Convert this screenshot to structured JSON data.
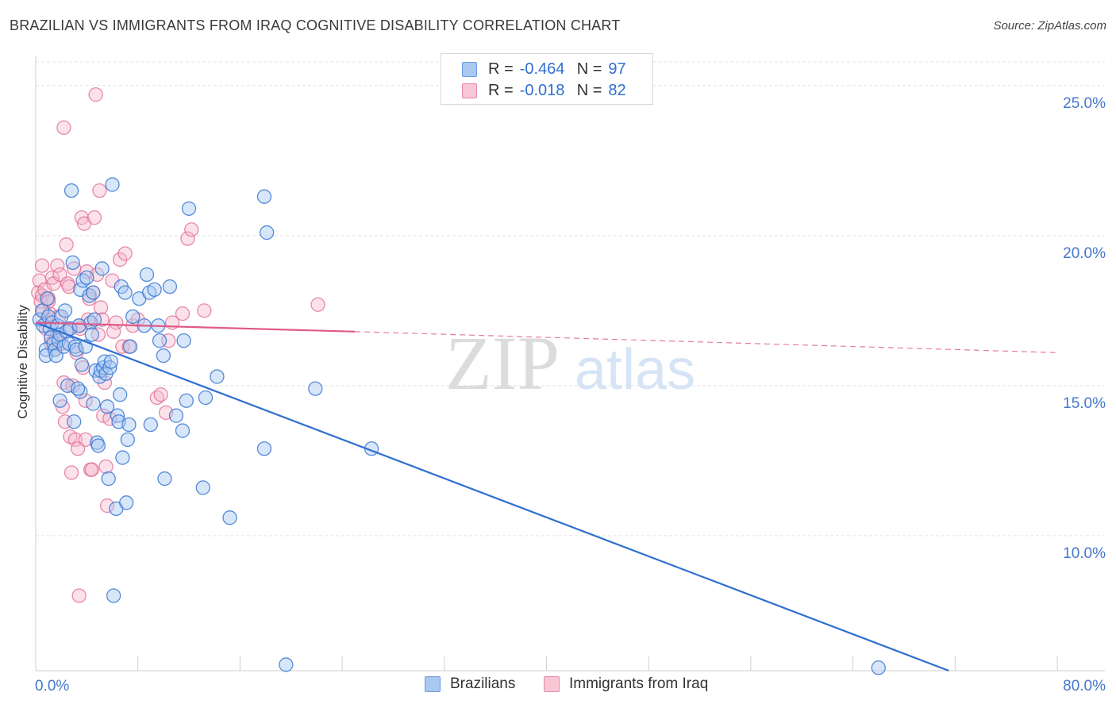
{
  "title": "BRAZILIAN VS IMMIGRANTS FROM IRAQ COGNITIVE DISABILITY CORRELATION CHART",
  "source": "Source: ZipAtlas.com",
  "watermark": {
    "zip": "ZIP",
    "atlas": "atlas"
  },
  "colors": {
    "blue": "#2f6fd0",
    "blue_fill": "#a9c8f2",
    "pink": "#e05a8a",
    "pink_fill": "#f4b7ca",
    "grid": "#e3e3e3",
    "tick_label": "#4477cc"
  },
  "legend": {
    "rows": [
      {
        "r_label": "R =",
        "r_value": "-0.464",
        "n_label": "N =",
        "n_value": "97"
      },
      {
        "r_label": "R =",
        "r_value": "-0.018",
        "n_label": "N =",
        "n_value": "82"
      }
    ]
  },
  "bottom_legend": {
    "series1": "Brazilians",
    "series2": "Immigrants from Iraq"
  },
  "chart_data": {
    "type": "scatter",
    "xlabel": "",
    "ylabel": "Cognitive Disability",
    "xlim": [
      0,
      80
    ],
    "ylim": [
      5.5,
      26.0
    ],
    "x_tick_labels": [
      "0.0%",
      "80.0%"
    ],
    "y_ticks": [
      10,
      15,
      20,
      25
    ],
    "y_tick_labels": [
      "10.0%",
      "15.0%",
      "20.0%",
      "25.0%"
    ],
    "series": [
      {
        "name": "Brazilians",
        "color": "blue",
        "regression": {
          "x": [
            0,
            71.5
          ],
          "y": [
            17.1,
            5.5
          ]
        },
        "points": [
          [
            0.3,
            17.2
          ],
          [
            0.5,
            17.5
          ],
          [
            0.6,
            17.0
          ],
          [
            0.8,
            16.2
          ],
          [
            0.8,
            16.0
          ],
          [
            1.0,
            17.3
          ],
          [
            1.1,
            16.9
          ],
          [
            1.2,
            16.6
          ],
          [
            1.3,
            17.1
          ],
          [
            1.4,
            16.4
          ],
          [
            1.5,
            16.2
          ],
          [
            1.6,
            16.0
          ],
          [
            1.7,
            17.0
          ],
          [
            1.8,
            16.5
          ],
          [
            1.9,
            16.7
          ],
          [
            2.0,
            17.3
          ],
          [
            2.2,
            16.3
          ],
          [
            2.3,
            17.5
          ],
          [
            2.4,
            16.8
          ],
          [
            2.5,
            15.0
          ],
          [
            2.6,
            16.4
          ],
          [
            2.7,
            16.9
          ],
          [
            2.8,
            21.5
          ],
          [
            2.9,
            19.1
          ],
          [
            3.0,
            13.8
          ],
          [
            3.1,
            16.3
          ],
          [
            3.2,
            16.2
          ],
          [
            3.4,
            17.0
          ],
          [
            3.5,
            18.2
          ],
          [
            3.5,
            14.8
          ],
          [
            3.6,
            15.7
          ],
          [
            3.7,
            18.5
          ],
          [
            3.9,
            16.3
          ],
          [
            4.0,
            18.6
          ],
          [
            4.2,
            18.0
          ],
          [
            4.3,
            17.1
          ],
          [
            4.4,
            16.7
          ],
          [
            4.5,
            18.1
          ],
          [
            4.6,
            17.2
          ],
          [
            4.5,
            14.4
          ],
          [
            4.7,
            15.5
          ],
          [
            4.8,
            13.1
          ],
          [
            4.9,
            13.0
          ],
          [
            5.0,
            15.3
          ],
          [
            5.1,
            15.5
          ],
          [
            5.2,
            18.9
          ],
          [
            5.3,
            15.6
          ],
          [
            5.4,
            15.8
          ],
          [
            5.5,
            15.4
          ],
          [
            5.6,
            14.3
          ],
          [
            5.7,
            11.9
          ],
          [
            5.8,
            15.6
          ],
          [
            5.9,
            15.8
          ],
          [
            6.0,
            21.7
          ],
          [
            6.1,
            8.0
          ],
          [
            6.3,
            10.9
          ],
          [
            6.4,
            14.0
          ],
          [
            6.5,
            13.8
          ],
          [
            6.6,
            14.7
          ],
          [
            6.7,
            18.3
          ],
          [
            6.8,
            12.6
          ],
          [
            7.0,
            18.1
          ],
          [
            7.1,
            11.1
          ],
          [
            7.2,
            13.2
          ],
          [
            7.3,
            13.7
          ],
          [
            7.4,
            16.3
          ],
          [
            7.6,
            17.3
          ],
          [
            8.1,
            17.9
          ],
          [
            8.5,
            17.0
          ],
          [
            8.7,
            18.7
          ],
          [
            8.9,
            18.1
          ],
          [
            9.0,
            13.7
          ],
          [
            9.3,
            18.2
          ],
          [
            9.6,
            17.0
          ],
          [
            9.7,
            16.5
          ],
          [
            10.0,
            16.0
          ],
          [
            10.1,
            11.9
          ],
          [
            10.5,
            18.3
          ],
          [
            11.0,
            14.0
          ],
          [
            11.5,
            13.5
          ],
          [
            11.6,
            16.5
          ],
          [
            11.8,
            14.5
          ],
          [
            12.0,
            20.9
          ],
          [
            13.1,
            11.6
          ],
          [
            13.3,
            14.6
          ],
          [
            14.2,
            15.3
          ],
          [
            15.2,
            10.6
          ],
          [
            17.9,
            12.9
          ],
          [
            17.9,
            21.3
          ],
          [
            18.1,
            20.1
          ],
          [
            19.6,
            5.7
          ],
          [
            21.9,
            14.9
          ],
          [
            26.3,
            12.9
          ],
          [
            66.0,
            5.6
          ],
          [
            1.9,
            14.5
          ],
          [
            3.3,
            14.9
          ],
          [
            0.9,
            17.9
          ]
        ]
      },
      {
        "name": "Immigrants from Iraq",
        "color": "pink",
        "regression": {
          "x": [
            0,
            25
          ],
          "y": [
            17.1,
            16.8
          ]
        },
        "regression_dashed": {
          "x": [
            25,
            80
          ],
          "y": [
            16.8,
            16.1
          ]
        },
        "points": [
          [
            0.2,
            18.1
          ],
          [
            0.3,
            18.5
          ],
          [
            0.4,
            17.8
          ],
          [
            0.5,
            18.0
          ],
          [
            0.6,
            17.5
          ],
          [
            0.7,
            18.2
          ],
          [
            0.8,
            16.9
          ],
          [
            0.9,
            17.2
          ],
          [
            1.0,
            17.9
          ],
          [
            1.1,
            17.4
          ],
          [
            1.2,
            16.6
          ],
          [
            1.3,
            18.6
          ],
          [
            1.4,
            18.4
          ],
          [
            1.5,
            16.2
          ],
          [
            1.6,
            16.6
          ],
          [
            1.7,
            19.0
          ],
          [
            1.8,
            17.3
          ],
          [
            1.9,
            18.7
          ],
          [
            2.0,
            16.4
          ],
          [
            2.1,
            14.3
          ],
          [
            2.2,
            15.1
          ],
          [
            2.3,
            13.8
          ],
          [
            2.4,
            19.7
          ],
          [
            2.5,
            18.4
          ],
          [
            2.6,
            16.9
          ],
          [
            2.7,
            13.3
          ],
          [
            2.8,
            12.1
          ],
          [
            2.9,
            15.0
          ],
          [
            3.0,
            18.9
          ],
          [
            3.1,
            13.2
          ],
          [
            3.2,
            16.1
          ],
          [
            3.3,
            12.9
          ],
          [
            3.4,
            17.0
          ],
          [
            3.5,
            16.9
          ],
          [
            3.6,
            20.6
          ],
          [
            3.7,
            15.6
          ],
          [
            3.8,
            20.4
          ],
          [
            3.9,
            14.5
          ],
          [
            4.0,
            18.8
          ],
          [
            4.1,
            17.2
          ],
          [
            4.2,
            17.9
          ],
          [
            4.3,
            12.2
          ],
          [
            4.4,
            12.2
          ],
          [
            4.5,
            18.1
          ],
          [
            4.6,
            20.6
          ],
          [
            4.7,
            24.7
          ],
          [
            4.8,
            18.7
          ],
          [
            4.9,
            16.7
          ],
          [
            5.0,
            21.5
          ],
          [
            5.1,
            17.6
          ],
          [
            5.2,
            17.2
          ],
          [
            5.3,
            14.0
          ],
          [
            5.4,
            15.1
          ],
          [
            5.5,
            12.3
          ],
          [
            5.6,
            11.0
          ],
          [
            5.8,
            13.9
          ],
          [
            6.0,
            18.5
          ],
          [
            6.3,
            17.1
          ],
          [
            6.6,
            19.2
          ],
          [
            6.8,
            16.3
          ],
          [
            7.0,
            19.4
          ],
          [
            7.3,
            16.3
          ],
          [
            7.6,
            17.0
          ],
          [
            8.0,
            17.2
          ],
          [
            9.5,
            14.6
          ],
          [
            9.8,
            14.7
          ],
          [
            10.2,
            14.1
          ],
          [
            10.4,
            16.5
          ],
          [
            10.7,
            17.1
          ],
          [
            11.5,
            17.4
          ],
          [
            11.9,
            19.9
          ],
          [
            12.2,
            20.2
          ],
          [
            13.2,
            17.5
          ],
          [
            22.1,
            17.7
          ],
          [
            2.2,
            23.6
          ],
          [
            3.4,
            8.0
          ],
          [
            1.2,
            16.4
          ],
          [
            2.6,
            18.3
          ],
          [
            0.5,
            19.0
          ],
          [
            1.0,
            17.8
          ],
          [
            3.9,
            13.2
          ],
          [
            6.1,
            16.8
          ]
        ]
      }
    ]
  }
}
